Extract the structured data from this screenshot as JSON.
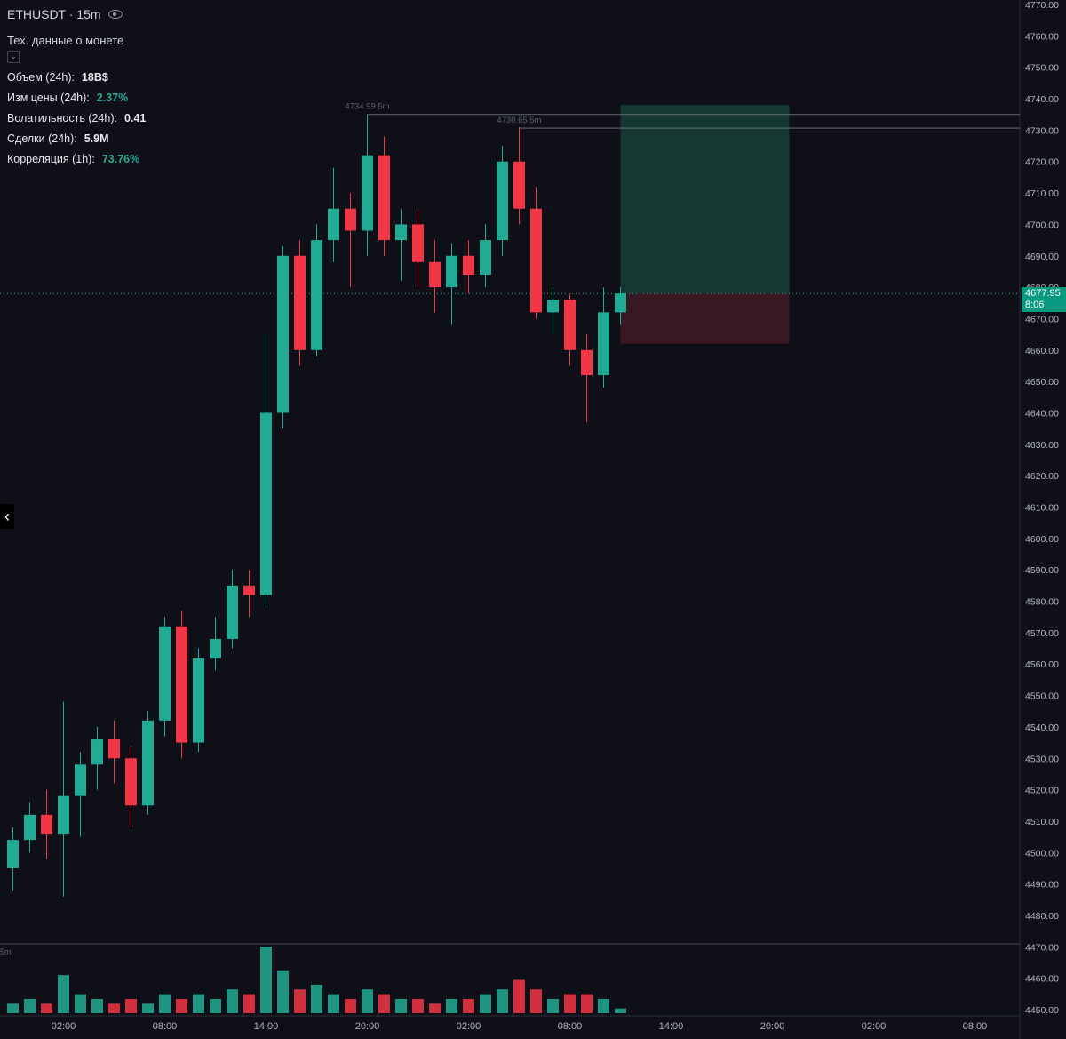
{
  "header": {
    "symbol": "ETHUSDT · 15m",
    "subtitle": "Тех. данные о монете",
    "collapse_icon": "chevron-down-icon"
  },
  "stats": [
    {
      "label": "Объем (24h):",
      "value": "18B$",
      "color": "#ffffff"
    },
    {
      "label": "Изм цены (24h):",
      "value": "2.37%",
      "color": "#22ab94"
    },
    {
      "label": "Волатильность (24h):",
      "value": "0.41",
      "color": "#ffffff"
    },
    {
      "label": "Сделки (24h):",
      "value": "5.9M",
      "color": "#ffffff"
    },
    {
      "label": "Корреляция (1h):",
      "value": "73.76%",
      "color": "#22ab94"
    }
  ],
  "last_price": {
    "price": "4677.95",
    "countdown": "8:06"
  },
  "volume_label": "5m",
  "colors": {
    "up": "#22ab94",
    "down": "#f23645",
    "background": "#0f0f18",
    "axis_text": "#b2b5be"
  },
  "chart_data": {
    "type": "candlestick",
    "timeframe": "15m",
    "y_axis": {
      "min": 4450,
      "max": 4770,
      "step": 10,
      "position": "right"
    },
    "x_ticks": [
      "02:00",
      "08:00",
      "14:00",
      "20:00",
      "02:00",
      "08:00",
      "14:00",
      "20:00",
      "02:00",
      "08:00"
    ],
    "x_tick_candle_index": [
      3,
      9,
      15,
      21,
      27,
      33,
      39,
      45,
      51,
      57
    ],
    "candle_count": 37,
    "ohlc": [
      [
        4495,
        4508,
        4488,
        4504
      ],
      [
        4504,
        4516,
        4500,
        4512
      ],
      [
        4512,
        4520,
        4498,
        4506
      ],
      [
        4506,
        4548,
        4486,
        4518
      ],
      [
        4518,
        4532,
        4505,
        4528
      ],
      [
        4528,
        4540,
        4520,
        4536
      ],
      [
        4536,
        4542,
        4522,
        4530
      ],
      [
        4530,
        4534,
        4508,
        4515
      ],
      [
        4515,
        4545,
        4512,
        4542
      ],
      [
        4542,
        4575,
        4537,
        4572
      ],
      [
        4572,
        4577,
        4530,
        4535
      ],
      [
        4535,
        4565,
        4532,
        4562
      ],
      [
        4562,
        4575,
        4558,
        4568
      ],
      [
        4568,
        4590,
        4565,
        4585
      ],
      [
        4585,
        4590,
        4575,
        4582
      ],
      [
        4582,
        4665,
        4578,
        4640
      ],
      [
        4640,
        4693,
        4635,
        4690
      ],
      [
        4690,
        4695,
        4655,
        4660
      ],
      [
        4660,
        4700,
        4658,
        4695
      ],
      [
        4695,
        4718,
        4688,
        4705
      ],
      [
        4705,
        4710,
        4680,
        4698
      ],
      [
        4698,
        4735,
        4690,
        4722
      ],
      [
        4722,
        4728,
        4690,
        4695
      ],
      [
        4695,
        4705,
        4682,
        4700
      ],
      [
        4700,
        4705,
        4680,
        4688
      ],
      [
        4688,
        4695,
        4672,
        4680
      ],
      [
        4680,
        4694,
        4668,
        4690
      ],
      [
        4690,
        4695,
        4678,
        4684
      ],
      [
        4684,
        4700,
        4680,
        4695
      ],
      [
        4695,
        4725,
        4690,
        4720
      ],
      [
        4720,
        4731,
        4700,
        4705
      ],
      [
        4705,
        4712,
        4670,
        4672
      ],
      [
        4672,
        4680,
        4665,
        4676
      ],
      [
        4676,
        4678,
        4655,
        4660
      ],
      [
        4660,
        4665,
        4637,
        4652
      ],
      [
        4652,
        4680,
        4648,
        4672
      ],
      [
        4672,
        4680,
        4668,
        4678
      ]
    ],
    "volumes": [
      2,
      3,
      2,
      8,
      4,
      3,
      2,
      3,
      2,
      4,
      3,
      4,
      3,
      5,
      4,
      14,
      9,
      5,
      6,
      4,
      3,
      5,
      4,
      3,
      3,
      2,
      3,
      3,
      4,
      5,
      7,
      5,
      3,
      4,
      4,
      3,
      1
    ],
    "annotations": [
      {
        "text": "4734.99 5m",
        "price": 4734.99,
        "candle_index": 21
      },
      {
        "text": "4730.65 5m",
        "price": 4730.65,
        "candle_index": 30
      }
    ],
    "position_box": {
      "entry": 4677.95,
      "target": 4738,
      "stop": 4662,
      "start_candle": 36,
      "end_candle": 46
    }
  }
}
